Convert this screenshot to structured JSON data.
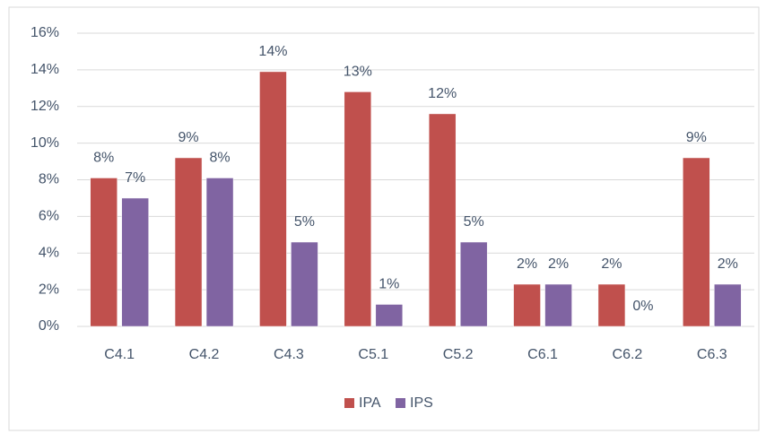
{
  "chart_data": {
    "type": "bar",
    "categories": [
      "C4.1",
      "C4.2",
      "C4.3",
      "C5.1",
      "C5.2",
      "C6.1",
      "C6.2",
      "C6.3"
    ],
    "series": [
      {
        "name": "IPA",
        "color": "#c0504d",
        "values": [
          8.1,
          9.2,
          13.9,
          12.8,
          11.6,
          2.3,
          2.3,
          9.2
        ],
        "value_labels": [
          "8%",
          "9%",
          "14%",
          "13%",
          "12%",
          "2%",
          "2%",
          "9%"
        ]
      },
      {
        "name": "IPS",
        "color": "#8064a2",
        "values": [
          7.0,
          8.1,
          4.6,
          1.2,
          4.6,
          2.3,
          0,
          2.3
        ],
        "value_labels": [
          "7%",
          "8%",
          "5%",
          "1%",
          "5%",
          "2%",
          "0%",
          "2%"
        ]
      }
    ],
    "ylim": [
      0,
      16
    ],
    "yticks": [
      {
        "value": 0,
        "label": "0%"
      },
      {
        "value": 2,
        "label": "2%"
      },
      {
        "value": 4,
        "label": "4%"
      },
      {
        "value": 6,
        "label": "6%"
      },
      {
        "value": 8,
        "label": "8%"
      },
      {
        "value": 10,
        "label": "10%"
      },
      {
        "value": 12,
        "label": "12%"
      },
      {
        "value": 14,
        "label": "14%"
      },
      {
        "value": 16,
        "label": "16%"
      }
    ],
    "grid": true,
    "legend": "bottom"
  }
}
